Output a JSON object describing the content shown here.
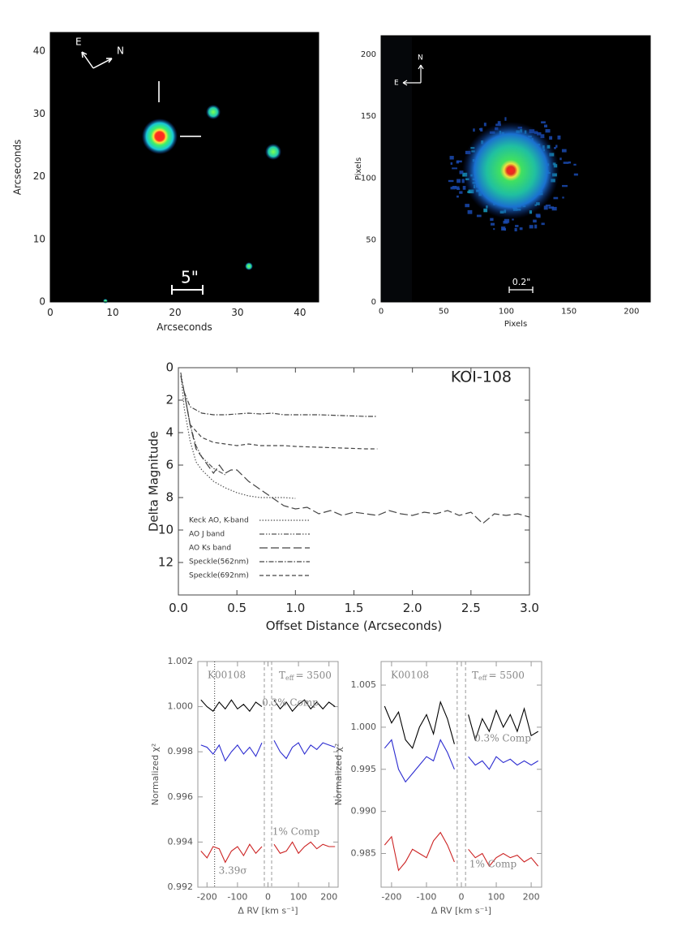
{
  "chart_data": [
    {
      "type": "image",
      "xlabel": "Arcseconds",
      "ylabel": "Arcseconds",
      "xlim": [
        0,
        43
      ],
      "ylim": [
        0,
        43
      ],
      "xticks": [
        0,
        10,
        20,
        30,
        40
      ],
      "yticks": [
        0,
        10,
        20,
        30,
        40
      ],
      "annotations": {
        "east": "E",
        "north": "N",
        "scale": "5\""
      }
    },
    {
      "type": "image",
      "xlabel": "Pixels",
      "ylabel": "Pixels",
      "xlim": [
        0,
        215
      ],
      "ylim": [
        0,
        215
      ],
      "xticks": [
        0,
        50,
        100,
        150,
        200
      ],
      "yticks": [
        0,
        50,
        100,
        150,
        200
      ],
      "annotations": {
        "east": "E",
        "north": "N",
        "scale": "0.2\""
      }
    },
    {
      "type": "line",
      "title": "KOI-108",
      "xlabel": "Offset Distance (Arcseconds)",
      "ylabel": "Delta Magnitude",
      "xlim": [
        0,
        3
      ],
      "ylim": [
        14,
        0
      ],
      "xticks": [
        {
          "value": 0,
          "label": "0.0"
        },
        0.5,
        {
          "value": 1,
          "label": "1.0"
        },
        1.5,
        {
          "value": 2,
          "label": "2.0"
        },
        2.5,
        {
          "value": 3,
          "label": "3.0"
        }
      ],
      "yticks": [
        0,
        2,
        4,
        6,
        8,
        10,
        12
      ],
      "legend": "lower left",
      "series": [
        {
          "name": "Keck AO, K-band",
          "color": "#555555",
          "dash": "dotted",
          "x": [
            0.02,
            0.05,
            0.1,
            0.15,
            0.2,
            0.3,
            0.4,
            0.5,
            0.6,
            0.7,
            0.8,
            0.9,
            1.0
          ],
          "values": [
            0.3,
            2.5,
            4.5,
            5.8,
            6.3,
            7.0,
            7.4,
            7.7,
            7.9,
            8.0,
            8.0,
            8.0,
            8.05
          ]
        },
        {
          "name": "AO J band",
          "color": "#555555",
          "dash": "dash-dot-dot",
          "x": [
            0.02,
            0.05,
            0.1,
            0.15,
            0.2,
            0.3,
            0.4
          ],
          "values": [
            0.3,
            1.5,
            3.5,
            4.8,
            5.5,
            6.2,
            6.6
          ]
        },
        {
          "name": "AO Ks band",
          "color": "#444444",
          "dash": "long-dash",
          "x": [
            0.02,
            0.05,
            0.1,
            0.15,
            0.2,
            0.25,
            0.3,
            0.35,
            0.4,
            0.45,
            0.5,
            0.6,
            0.7,
            0.8,
            0.9,
            1.0,
            1.1,
            1.2,
            1.3,
            1.4,
            1.5,
            1.6,
            1.7,
            1.8,
            1.9,
            2.0,
            2.1,
            2.2,
            2.3,
            2.4,
            2.5,
            2.6,
            2.7,
            2.8,
            2.9,
            3.0
          ],
          "values": [
            0.5,
            1.5,
            3.5,
            5.0,
            5.5,
            6.0,
            6.5,
            6.0,
            6.5,
            6.3,
            6.3,
            7.0,
            7.5,
            8.0,
            8.5,
            8.7,
            8.6,
            9.0,
            8.8,
            9.1,
            8.9,
            9.0,
            9.1,
            8.8,
            9.0,
            9.1,
            8.9,
            9.0,
            8.8,
            9.1,
            8.9,
            9.6,
            9.0,
            9.1,
            9.0,
            9.2
          ]
        },
        {
          "name": "Speckle(562nm)",
          "color": "#444444",
          "dash": "dash-dot",
          "x": [
            0.05,
            0.1,
            0.2,
            0.3,
            0.4,
            0.5,
            0.6,
            0.7,
            0.8,
            0.9,
            1.0,
            1.2,
            1.4,
            1.6,
            1.7
          ],
          "values": [
            1.5,
            2.4,
            2.8,
            2.9,
            2.9,
            2.85,
            2.8,
            2.85,
            2.8,
            2.9,
            2.9,
            2.9,
            2.95,
            3.0,
            3.0
          ]
        },
        {
          "name": "Speckle(692nm)",
          "color": "#444444",
          "dash": "dashed",
          "x": [
            0.05,
            0.1,
            0.2,
            0.3,
            0.4,
            0.5,
            0.6,
            0.7,
            0.8,
            0.9,
            1.0,
            1.2,
            1.4,
            1.6,
            1.7
          ],
          "values": [
            1.5,
            3.5,
            4.3,
            4.6,
            4.7,
            4.8,
            4.7,
            4.8,
            4.8,
            4.8,
            4.85,
            4.9,
            4.95,
            5.0,
            5.0
          ]
        }
      ]
    },
    {
      "type": "line",
      "title": "K00108",
      "teff": {
        "text": "T",
        "sub": "eff",
        "rest": "= 3500"
      },
      "xlabel": "Δ RV [km s⁻¹]",
      "ylabel": "Normalized χ²",
      "xlim": [
        -230,
        230
      ],
      "ylim": [
        0.992,
        1.002
      ],
      "xticks": [
        -200,
        -100,
        0,
        100,
        200
      ],
      "yticks": [
        0.992,
        0.994,
        0.996,
        0.998,
        {
          "value": 1,
          "label": "1.000"
        },
        1.002
      ],
      "vlines": [
        -12,
        12
      ],
      "marker_x": -175,
      "marker_label": "3.39σ",
      "x": [
        -220,
        -200,
        -180,
        -160,
        -140,
        -120,
        -100,
        -80,
        -60,
        -40,
        -20,
        0,
        20,
        40,
        60,
        80,
        100,
        120,
        140,
        160,
        180,
        200,
        220
      ],
      "series": [
        {
          "color": "#000000",
          "values": [
            1.0003,
            1.0,
            0.9998,
            1.0002,
            0.9999,
            1.0003,
            0.9999,
            1.0001,
            0.9998,
            1.0002,
            1.0,
            null,
            1.0003,
            0.9999,
            1.0002,
            0.9998,
            1.0001,
            1.0003,
            0.9999,
            1.0002,
            0.9999,
            1.0002,
            1.0
          ]
        },
        {
          "color": "#2b2bd0",
          "label": "0.3% Comp",
          "values": [
            0.9983,
            0.9982,
            0.9979,
            0.9983,
            0.9976,
            0.998,
            0.9983,
            0.9979,
            0.9982,
            0.9978,
            0.9984,
            null,
            0.9985,
            0.998,
            0.9977,
            0.9982,
            0.9984,
            0.9979,
            0.9983,
            0.9981,
            0.9984,
            0.9983,
            0.9982
          ]
        },
        {
          "color": "#cc2222",
          "label": "1% Comp",
          "values": [
            0.9936,
            0.9933,
            0.9938,
            0.9937,
            0.9931,
            0.9936,
            0.9938,
            0.9934,
            0.9939,
            0.9935,
            0.9938,
            null,
            0.9939,
            0.9935,
            0.9936,
            0.994,
            0.9935,
            0.9938,
            0.994,
            0.9937,
            0.9939,
            0.9938,
            0.9938
          ]
        }
      ]
    },
    {
      "type": "line",
      "title": "K00108",
      "teff": {
        "text": "T",
        "sub": "eff",
        "rest": "= 5500"
      },
      "xlabel": "Δ RV [km s⁻¹]",
      "ylabel": "Normalized χ²",
      "xlim": [
        -230,
        230
      ],
      "ylim": [
        0.981,
        1.0078
      ],
      "xticks": [
        -200,
        -100,
        0,
        100,
        200
      ],
      "yticks": [
        0.985,
        {
          "value": 0.99,
          "label": "0.990"
        },
        0.995,
        {
          "value": 1,
          "label": "1.000"
        },
        1.005
      ],
      "vlines": [
        -12,
        12
      ],
      "x": [
        -220,
        -200,
        -180,
        -160,
        -140,
        -120,
        -100,
        -80,
        -60,
        -40,
        -20,
        0,
        20,
        40,
        60,
        80,
        100,
        120,
        140,
        160,
        180,
        200,
        220
      ],
      "series": [
        {
          "color": "#000000",
          "values": [
            1.0025,
            1.0005,
            1.0018,
            0.9985,
            0.9975,
            1.0,
            1.0015,
            0.9992,
            1.003,
            1.001,
            0.998,
            null,
            1.0015,
            0.9985,
            1.001,
            0.9995,
            1.002,
            1.0,
            1.0015,
            0.9995,
            1.0022,
            0.999,
            0.9995
          ]
        },
        {
          "color": "#2b2bd0",
          "label": "0.3% Comp",
          "values": [
            0.9975,
            0.9985,
            0.995,
            0.9935,
            0.9945,
            0.9955,
            0.9965,
            0.996,
            0.9985,
            0.997,
            0.995,
            null,
            0.9965,
            0.9955,
            0.996,
            0.995,
            0.9965,
            0.9958,
            0.9962,
            0.9955,
            0.996,
            0.9955,
            0.996
          ]
        },
        {
          "color": "#cc2222",
          "label": "1% Comp",
          "values": [
            0.986,
            0.987,
            0.983,
            0.984,
            0.9855,
            0.985,
            0.9845,
            0.9865,
            0.9875,
            0.986,
            0.984,
            null,
            0.9855,
            0.9845,
            0.985,
            0.9835,
            0.9845,
            0.985,
            0.9845,
            0.9848,
            0.984,
            0.9845,
            0.9835
          ]
        }
      ]
    }
  ]
}
